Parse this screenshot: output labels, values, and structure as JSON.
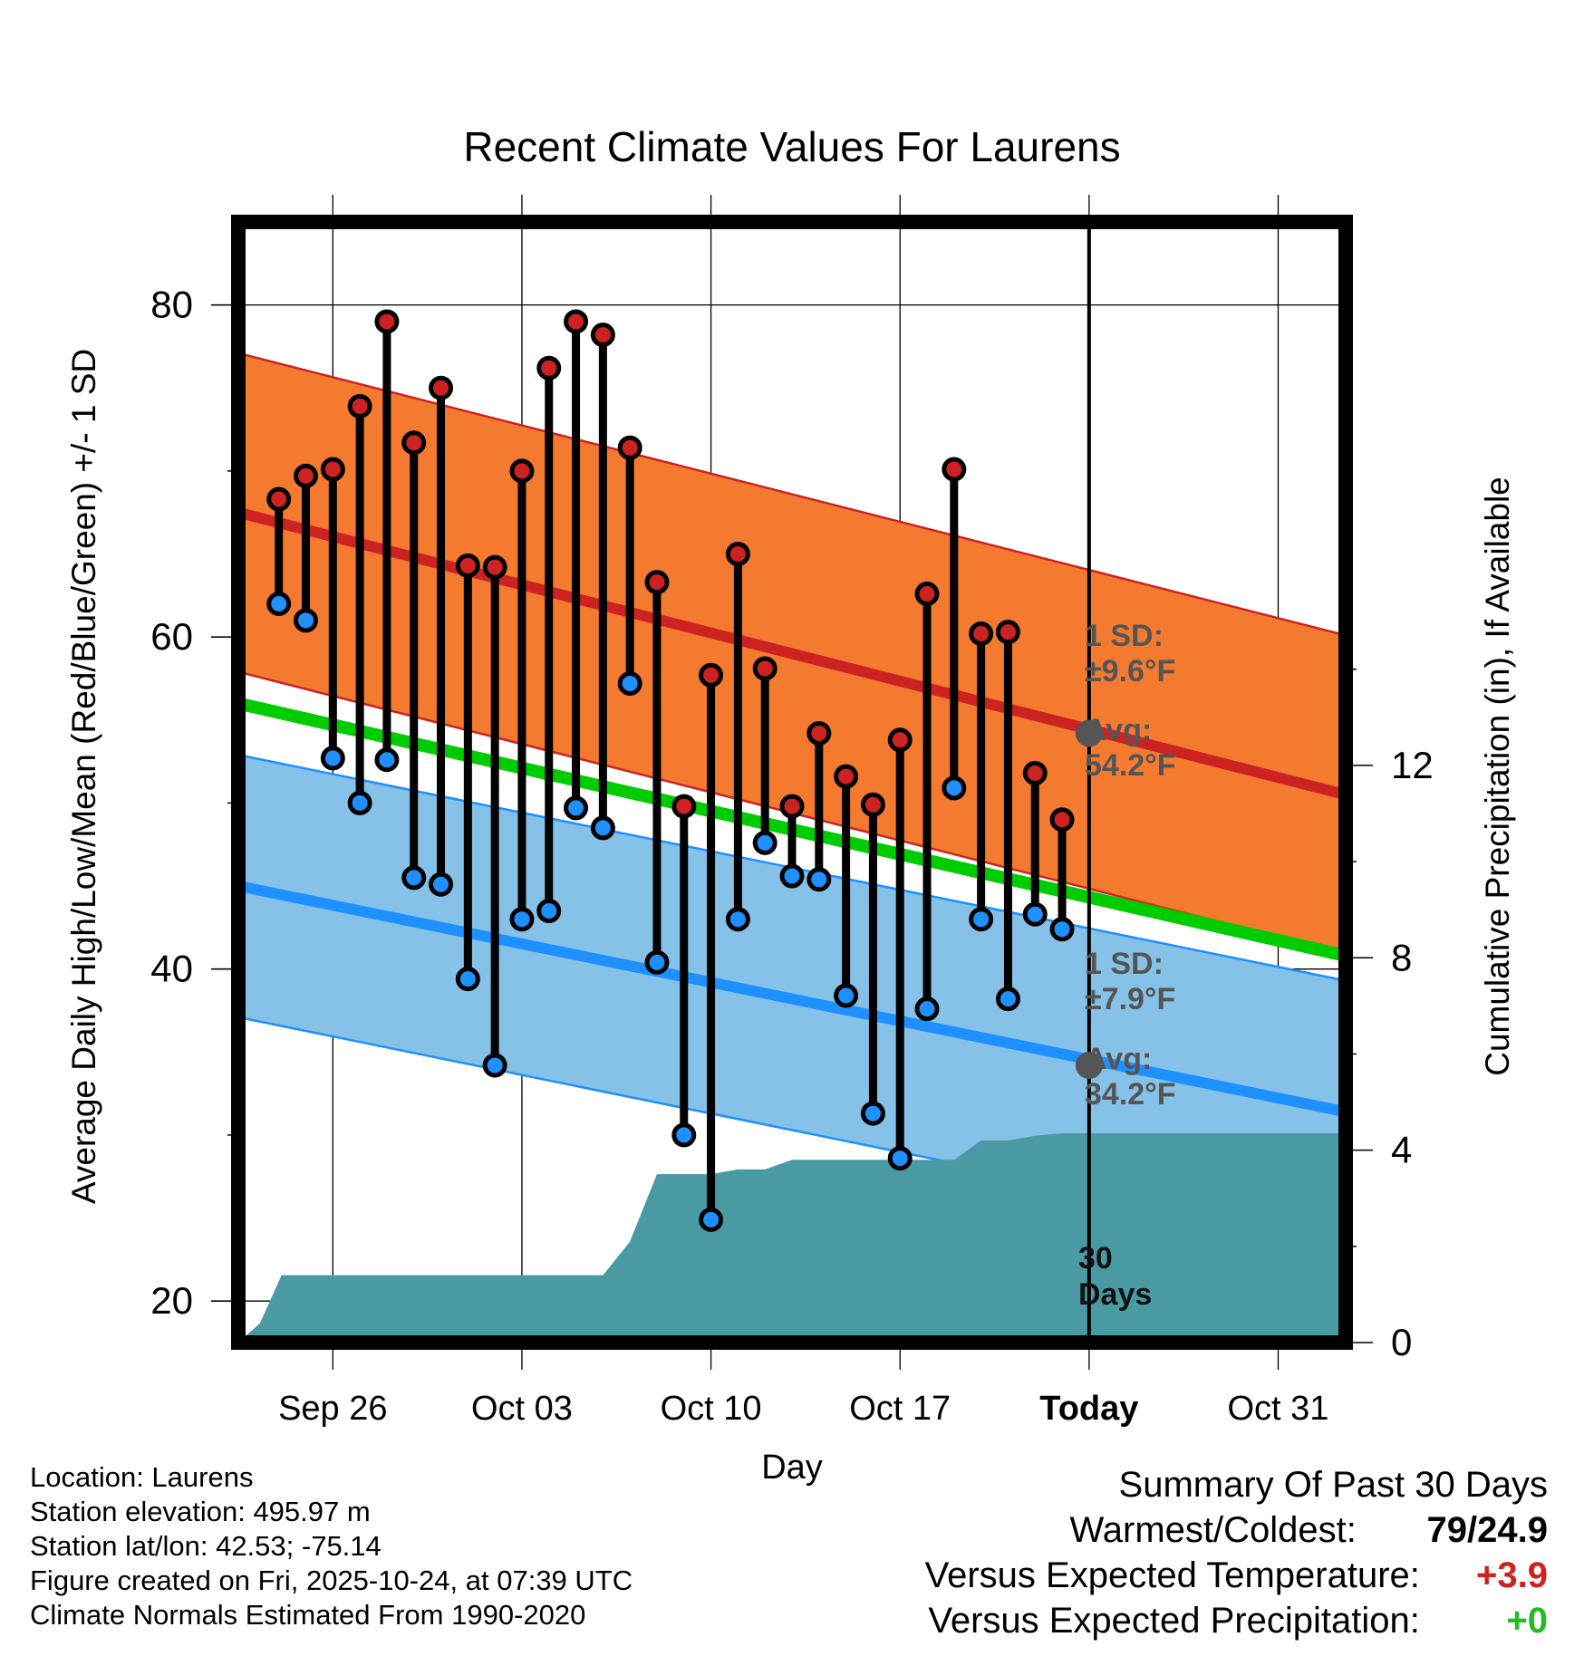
{
  "chart_data": {
    "type": "line",
    "title": "Recent Climate Values For Laurens",
    "xlabel": "Day",
    "ylabel": "Average Daily High/Low/Mean (Red/Blue/Green) +/- 1 SD",
    "y2label": "Cumulative Precipitation (in), If Available",
    "x_range_days": [
      -31.5,
      9.5
    ],
    "ylim": [
      17.5,
      85
    ],
    "y2lim": [
      0,
      23.3
    ],
    "x_ticks": [
      {
        "day": -28,
        "label": "Sep 26"
      },
      {
        "day": -21,
        "label": "Oct 03"
      },
      {
        "day": -14,
        "label": "Oct 10"
      },
      {
        "day": -7,
        "label": "Oct 17"
      },
      {
        "day": 0,
        "label": "Today"
      },
      {
        "day": 7,
        "label": "Oct 31"
      }
    ],
    "y_ticks": [
      20,
      40,
      60,
      80
    ],
    "y2_ticks": [
      0,
      4,
      8,
      12
    ],
    "normal_high": {
      "start": 67.5,
      "end": 50.5,
      "sd": 9.6
    },
    "normal_low": {
      "start": 45.0,
      "end": 31.4,
      "sd": 7.9
    },
    "normal_mean": {
      "start": 56.0,
      "end": 40.8
    },
    "series": [
      {
        "name": "High",
        "color": "#cc2222",
        "values": [
          68.3,
          69.7,
          70.1,
          73.9,
          79.0,
          71.7,
          75.0,
          64.3,
          64.2,
          70.0,
          76.2,
          79.0,
          78.2,
          71.4,
          63.3,
          49.8,
          57.7,
          65.0,
          58.1,
          49.8,
          54.2,
          51.6,
          49.9,
          53.8,
          62.6,
          70.1,
          60.2,
          60.3,
          51.8,
          49.0
        ]
      },
      {
        "name": "Low",
        "color": "#1e90ff",
        "values": [
          62.0,
          61.0,
          52.7,
          50.0,
          52.6,
          45.5,
          45.1,
          39.4,
          34.2,
          43.0,
          43.5,
          49.7,
          48.5,
          57.2,
          40.4,
          30.0,
          24.9,
          43.0,
          47.6,
          45.6,
          45.4,
          38.4,
          31.3,
          28.6,
          37.6,
          50.9,
          43.0,
          38.2,
          43.3,
          42.4
        ]
      }
    ],
    "precip_cumulative": {
      "days": [
        -31.5,
        -30.7,
        -29.9,
        -29.0,
        -28.0,
        -27.0,
        -26.0,
        -25.0,
        -24.0,
        -23.0,
        -22.0,
        -21.0,
        -20.0,
        -19.0,
        -18.0,
        -17.0,
        -16.0,
        -15.0,
        -14.0,
        -13.0,
        -12.0,
        -11.0,
        -10.0,
        -9.0,
        -8.0,
        -7.0,
        -6.0,
        -5.0,
        -4.0,
        -3.0,
        -2.0,
        -1.0,
        0.0,
        9.5
      ],
      "values": [
        0,
        0.4,
        1.4,
        1.4,
        1.4,
        1.4,
        1.4,
        1.4,
        1.4,
        1.4,
        1.4,
        1.4,
        1.4,
        1.4,
        1.4,
        2.1,
        3.5,
        3.5,
        3.5,
        3.6,
        3.6,
        3.8,
        3.8,
        3.8,
        3.8,
        3.8,
        3.8,
        3.8,
        4.2,
        4.2,
        4.3,
        4.35,
        4.35,
        4.35
      ]
    },
    "annotations": {
      "high_sd_label": "1 SD:",
      "high_sd_value": "±9.6°F",
      "high_avg_label": "Avg:",
      "high_avg_value": "54.2°F",
      "low_sd_label": "1 SD:",
      "low_sd_value": "±7.9°F",
      "low_avg_label": "Avg:",
      "low_avg_value": "34.2°F",
      "days_count": "30",
      "days_word": "Days",
      "high_avg_num": 54.2,
      "low_avg_num": 34.2
    },
    "colors": {
      "high_band": "#f47a30",
      "high_line": "#cc2222",
      "low_band": "#86c1e8",
      "low_line": "#1e90ff",
      "mean_line": "#00cc00",
      "precip": "#4a9aa3",
      "today_marker": "#555555"
    }
  },
  "info": {
    "location": "Location: Laurens",
    "elevation": "Station elevation: 495.97 m",
    "latlon": "Station lat/lon: 42.53; -75.14",
    "created": "Figure created on Fri, 2025-10-24, at 07:39 UTC",
    "normals": "Climate Normals Estimated From 1990-2020"
  },
  "summary": {
    "title": "Summary Of Past 30 Days",
    "warm_cold_label": "Warmest/Coldest:",
    "warm_cold_value": "79/24.9",
    "temp_label": "Versus Expected Temperature:",
    "temp_value": "+3.9",
    "temp_color": "#cc2222",
    "precip_label": "Versus Expected Precipitation:",
    "precip_value": "+0",
    "precip_color": "#22bb22"
  }
}
